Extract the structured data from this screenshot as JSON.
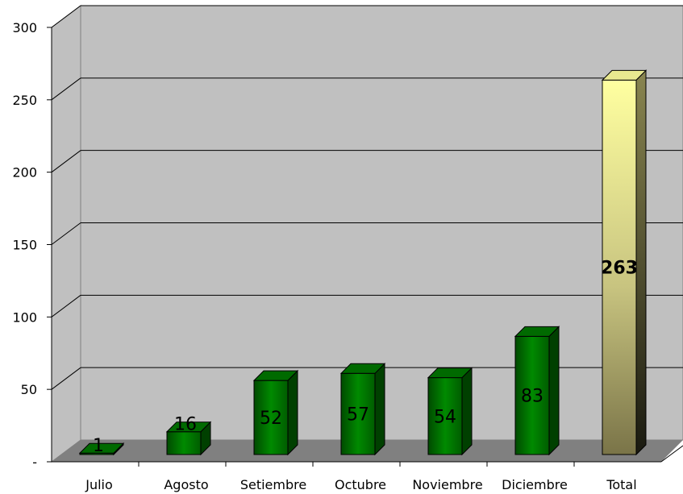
{
  "chart_data": {
    "type": "bar",
    "title": "",
    "xlabel": "",
    "ylabel": "",
    "categories": [
      "Julio",
      "Agosto",
      "Setiembre",
      "Octubre",
      "Noviembre",
      "Diciembre",
      "Total"
    ],
    "values": [
      1,
      16,
      52,
      57,
      54,
      83,
      263
    ],
    "y_tick_labels": [
      "-",
      "50",
      "100",
      "150",
      "200",
      "250",
      "300"
    ],
    "ylim": [
      0,
      300
    ],
    "grid": true,
    "style": "3d-bar",
    "colors": {
      "wall": "#c0c0c0",
      "floor": "#808080",
      "bar": "#007a00",
      "bar_dark": "#004000",
      "total_light": "#ffffa0",
      "total_dark": "#807a45"
    }
  }
}
